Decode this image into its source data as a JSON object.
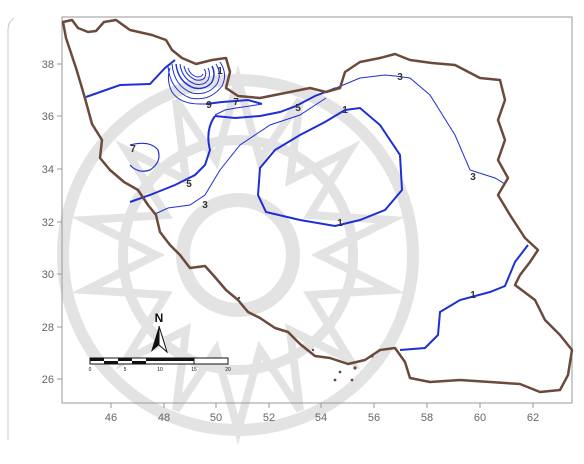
{
  "map": {
    "x_ticks": [
      "46",
      "48",
      "50",
      "52",
      "54",
      "56",
      "58",
      "60",
      "62"
    ],
    "y_ticks": [
      "38",
      "36",
      "34",
      "32",
      "30",
      "28",
      "26"
    ],
    "contour_labels": [
      "3",
      "1",
      "9",
      "7",
      "5",
      "1",
      "7",
      "5",
      "3",
      "1",
      "3",
      "1"
    ],
    "north_arrow": "N",
    "scale_bar_labels": [
      "0",
      "5",
      "10",
      "15",
      "20"
    ]
  },
  "colors": {
    "border": "#6b4a3c",
    "contour": "#1f2fd6",
    "axis": "#8c8c8c",
    "watermark": "#dcdcdc"
  }
}
